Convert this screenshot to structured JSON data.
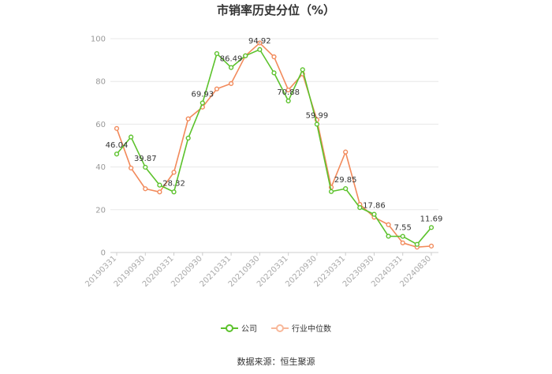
{
  "chart_data": {
    "type": "line",
    "title": "市销率历史分位（%）",
    "source": "数据来源：恒生聚源",
    "ylim": [
      0,
      100
    ],
    "yticks": [
      0,
      20,
      40,
      60,
      80,
      100
    ],
    "xtick_labels": [
      "20190331",
      "20190930",
      "20200331",
      "20200930",
      "20210331",
      "20210930",
      "20220331",
      "20220930",
      "20230331",
      "20230930",
      "20240331",
      "20240830"
    ],
    "grid": true,
    "legend_position": "bottom",
    "series": [
      {
        "name": "公司",
        "color": "#5cc22c",
        "values": [
          46.04,
          54,
          39.87,
          31.5,
          28.32,
          53.5,
          69.93,
          93,
          86.49,
          92,
          94.92,
          84,
          70.88,
          85.5,
          59.99,
          28.5,
          29.85,
          21,
          17.86,
          7.6,
          7.55,
          3.8,
          11.69
        ],
        "labels": {
          "0": "46.04",
          "2": "39.87",
          "4": "28.32",
          "6": "69.93",
          "8": "86.49",
          "10": "94.92",
          "12": "70.88",
          "14": "59.99",
          "16": "29.85",
          "18": "17.86",
          "20": "7.55",
          "22": "11.69"
        }
      },
      {
        "name": "行业中位数",
        "color": "#f28a5b",
        "values": [
          58,
          39.5,
          29.8,
          28.3,
          37.5,
          62.5,
          68,
          76.5,
          79,
          92,
          98,
          91.5,
          76,
          83.5,
          62,
          30.5,
          47,
          22.5,
          16.5,
          13,
          4.5,
          2.5,
          3
        ]
      }
    ]
  }
}
